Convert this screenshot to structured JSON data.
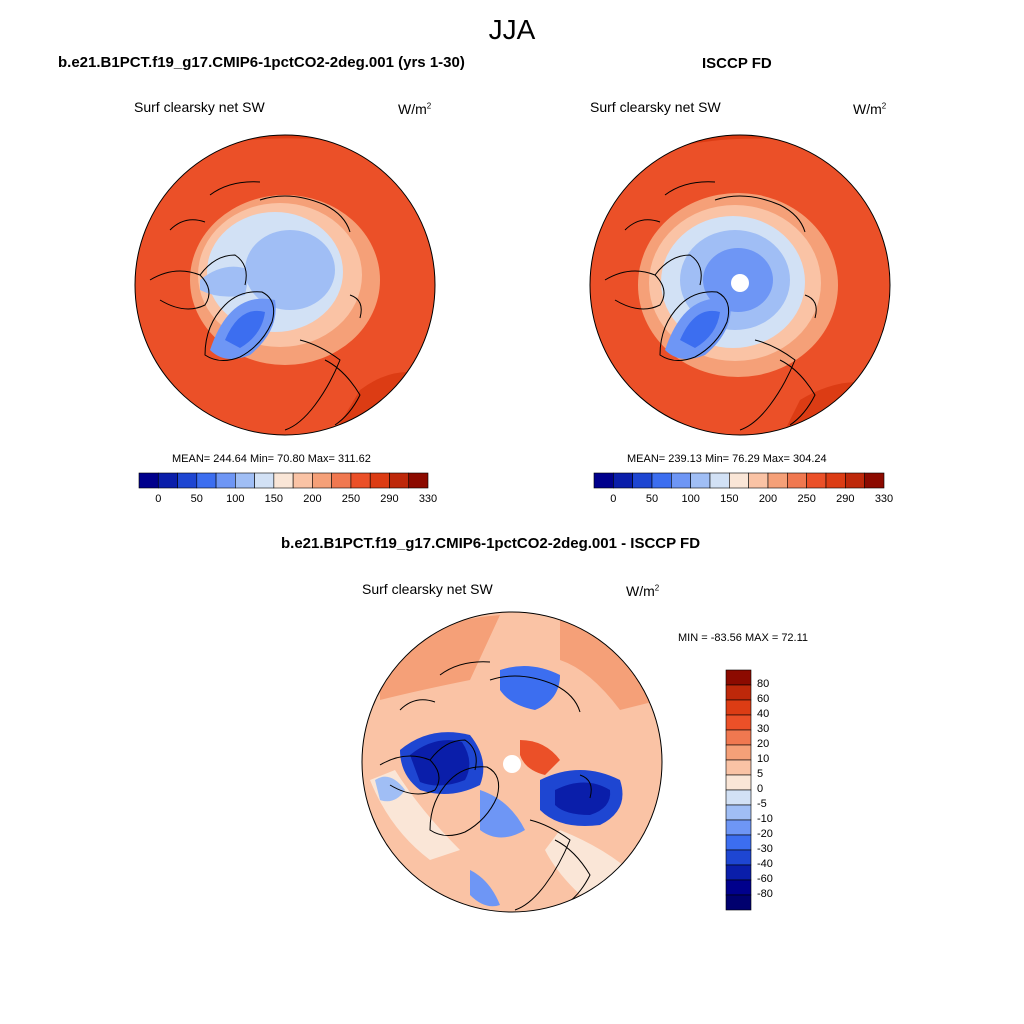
{
  "figure": {
    "season": "JJA"
  },
  "panels": {
    "model": {
      "title": "b.e21.B1PCT.f19_g17.CMIP6-1pctCO2-2deg.001 (yrs 1-30)",
      "field": "Surf clearsky net SW",
      "units_base": "W/m",
      "units_exp": "2",
      "stats": "MEAN= 244.64  Min=  70.80  Max= 311.62"
    },
    "obs": {
      "title": "ISCCP FD",
      "field": "Surf clearsky net SW",
      "units_base": "W/m",
      "units_exp": "2",
      "stats": "MEAN= 239.13  Min=  76.29  Max= 304.24"
    },
    "diff": {
      "title": "b.e21.B1PCT.f19_g17.CMIP6-1pctCO2-2deg.001 - ISCCP FD",
      "field": "Surf clearsky net SW",
      "units_base": "W/m",
      "units_exp": "2",
      "stats": "MIN = -83.56 MAX =  72.11"
    }
  },
  "colorbars": {
    "absolute": {
      "labels": [
        "0",
        "50",
        "100",
        "150",
        "200",
        "250",
        "290",
        "330"
      ],
      "colors": [
        "#00008c",
        "#0a1eaa",
        "#1e46d2",
        "#3c6ef0",
        "#6e96f5",
        "#a0bef5",
        "#d2e1f5",
        "#fae6d7",
        "#fac3a5",
        "#f5a078",
        "#f07850",
        "#eb5028",
        "#dc3c14",
        "#be280a",
        "#8c0a00"
      ]
    },
    "difference": {
      "labels": [
        "80",
        "60",
        "40",
        "30",
        "20",
        "10",
        "5",
        "0",
        "-5",
        "-10",
        "-20",
        "-30",
        "-40",
        "-60",
        "-80"
      ],
      "colors": [
        "#8c0a00",
        "#be280a",
        "#dc3c14",
        "#eb5028",
        "#f07850",
        "#f5a078",
        "#fac3a5",
        "#fae6d7",
        "#d2e1f5",
        "#a0bef5",
        "#6e96f5",
        "#3c6ef0",
        "#1e46d2",
        "#0a1eaa",
        "#00008c",
        "#00006e"
      ]
    }
  }
}
